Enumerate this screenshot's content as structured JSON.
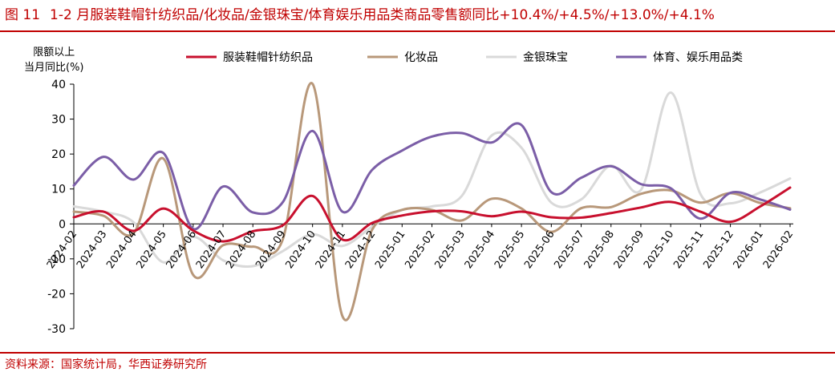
{
  "figure": {
    "number": "图 11",
    "title": "1-2 月服装鞋帽针纺织品/化妆品/金银珠宝/体育娱乐用品类商品零售额同比+10.4%/+4.5%/+13.0%/+4.1%",
    "source": "资料来源：国家统计局，华西证券研究所"
  },
  "chart_data": {
    "type": "line",
    "ylabel_line1": "限额以上",
    "ylabel_line2": "当月同比(%)",
    "ylim": [
      -30,
      40
    ],
    "yticks": [
      -30,
      -20,
      -10,
      0,
      10,
      20,
      30,
      40
    ],
    "ytick_labels": [
      "-30",
      "-20",
      "-10",
      "0",
      "10",
      "20",
      "30",
      "40"
    ],
    "x": [
      "2024-02",
      "2024-03",
      "2024-04",
      "2024-05",
      "2024-06",
      "2024-07",
      "2024-08",
      "2024-09",
      "2024-10",
      "2024-11",
      "2024-12",
      "2025-01",
      "2025-02",
      "2025-03",
      "2025-04",
      "2025-05",
      "2025-06",
      "2025-07",
      "2025-08",
      "2025-09",
      "2025-10",
      "2025-11",
      "2025-12",
      "2026-01",
      "2026-02"
    ],
    "grid": false,
    "legend_position": "top",
    "series": [
      {
        "name": "服装鞋帽针纺织品",
        "color": "#c8102e",
        "values": [
          1.9,
          3.5,
          -2.0,
          4.4,
          -1.9,
          -5.0,
          -2.1,
          -0.4,
          8.0,
          -4.5,
          0.3,
          2.4,
          3.6,
          3.6,
          2.2,
          3.5,
          1.9,
          1.8,
          3.1,
          4.7,
          6.3,
          3.5,
          0.6,
          5.0,
          10.4
        ]
      },
      {
        "name": "化妆品",
        "color": "#b8987a",
        "values": [
          3.5,
          2.3,
          -2.7,
          18.7,
          -14.6,
          -6.1,
          -6.5,
          -4.5,
          40.1,
          -26.4,
          -1.6,
          4.0,
          4.0,
          1.0,
          7.2,
          4.4,
          -2.3,
          4.5,
          4.8,
          8.6,
          9.6,
          6.1,
          8.8,
          6.0,
          4.5
        ]
      },
      {
        "name": "金银珠宝",
        "color": "#d9d9d9",
        "values": [
          5.0,
          3.5,
          0.5,
          -11.0,
          -3.7,
          -10.4,
          -12.1,
          -7.8,
          -3.0,
          -6.3,
          -0.8,
          4.0,
          5.0,
          8.0,
          25.3,
          21.8,
          6.1,
          7.0,
          16.7,
          9.7,
          37.6,
          8.5,
          5.9,
          9.0,
          13.0
        ]
      },
      {
        "name": "体育、娱乐用品类",
        "color": "#7b5ea7",
        "values": [
          11.0,
          19.2,
          12.7,
          20.3,
          -1.4,
          10.7,
          3.3,
          6.2,
          26.6,
          3.5,
          15.5,
          21.0,
          25.0,
          26.0,
          23.3,
          28.3,
          9.1,
          13.2,
          16.5,
          11.4,
          10.2,
          1.5,
          8.9,
          7.0,
          4.1
        ]
      }
    ]
  }
}
